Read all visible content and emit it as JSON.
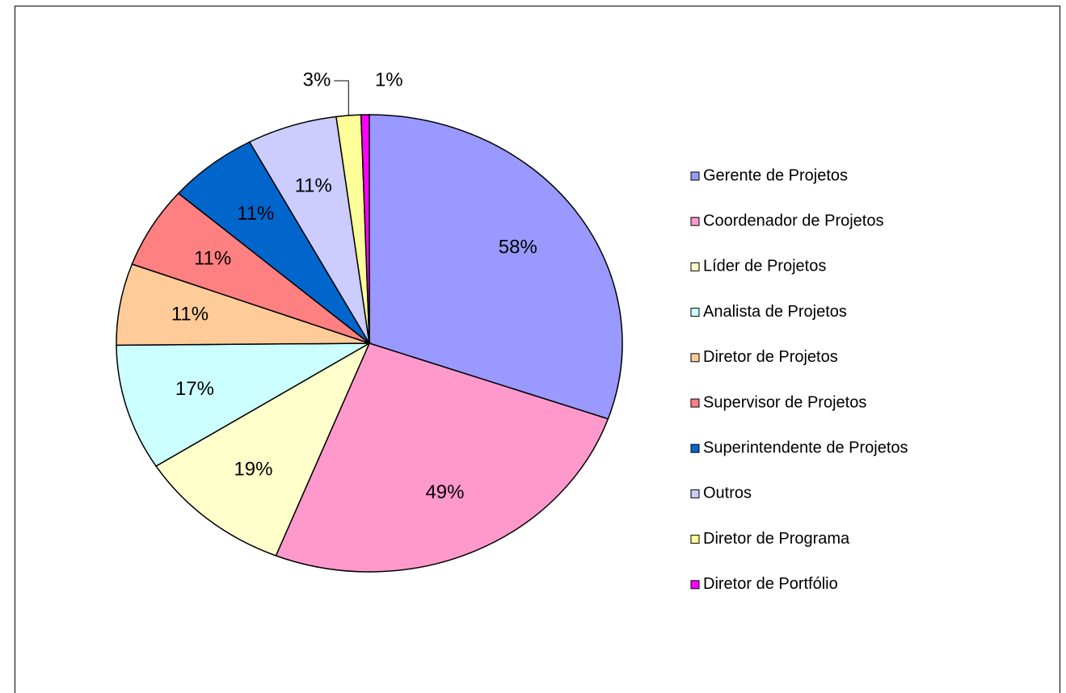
{
  "chart_data": {
    "type": "pie",
    "categories": [
      "Gerente de Projetos",
      "Coordenador de Projetos",
      "Líder de Projetos",
      "Analista de Projetos",
      "Diretor de Projetos",
      "Supervisor de Projetos",
      "Superintendente de Projetos",
      "Outros",
      "Diretor de Programa",
      "Diretor de Portfólio"
    ],
    "values": [
      58,
      49,
      19,
      17,
      11,
      11,
      11,
      11,
      3,
      1
    ],
    "value_labels": [
      "58%",
      "49%",
      "19%",
      "17%",
      "11%",
      "11%",
      "11%",
      "11%",
      "3%",
      "1%"
    ],
    "colors": [
      "#9999ff",
      "#ff99cc",
      "#ffffcc",
      "#ccffff",
      "#ffcc99",
      "#ff8080",
      "#0066cc",
      "#ccccff",
      "#ffff99",
      "#ff00ff"
    ],
    "legend": "right"
  }
}
